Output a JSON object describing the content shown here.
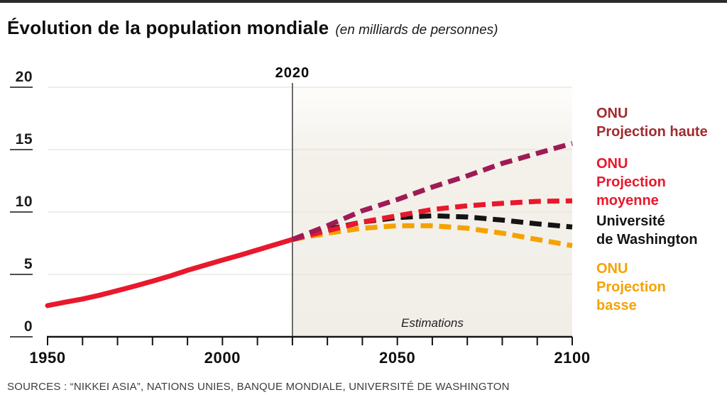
{
  "header": {
    "title": "Évolution de la population mondiale",
    "subtitle": "(en milliards de personnes)"
  },
  "footer": {
    "sources": "SOURCES : “NIKKEI ASIA”, NATIONS UNIES, BANQUE MONDIALE, UNIVERSITÉ DE WASHINGTON"
  },
  "chart_data": {
    "type": "line",
    "title": "Évolution de la population mondiale",
    "ylabel": "milliards de personnes",
    "x_axis": {
      "range": [
        1950,
        2100
      ],
      "minor_tick_step": 10,
      "labeled_ticks": [
        "1950",
        "2000",
        "2050",
        "2100"
      ]
    },
    "y_axis": {
      "range": [
        0,
        20
      ],
      "ticks": [
        "0",
        "5",
        "10",
        "15",
        "20"
      ]
    },
    "annotations": {
      "divider_year": 2020,
      "divider_label": "2020",
      "region_label": "Estimations",
      "region_range": [
        2020,
        2100
      ]
    },
    "series": [
      {
        "name": "population-observee",
        "style": "solid",
        "color": "#e9182c",
        "x": [
          1950,
          1955,
          1960,
          1965,
          1970,
          1975,
          1980,
          1985,
          1990,
          1995,
          2000,
          2005,
          2010,
          2015,
          2020
        ],
        "values": [
          2.5,
          2.77,
          3.03,
          3.34,
          3.7,
          4.07,
          4.46,
          4.87,
          5.33,
          5.74,
          6.15,
          6.54,
          6.96,
          7.38,
          7.8
        ]
      },
      {
        "name": "onu-projection-basse",
        "style": "dashed",
        "color": "#f5a201",
        "x": [
          2020,
          2030,
          2040,
          2050,
          2060,
          2070,
          2080,
          2090,
          2100
        ],
        "values": [
          7.8,
          8.3,
          8.7,
          8.9,
          8.9,
          8.7,
          8.3,
          7.8,
          7.3
        ]
      },
      {
        "name": "universite-de-washington",
        "style": "dashed",
        "color": "#141414",
        "x": [
          2020,
          2030,
          2040,
          2050,
          2060,
          2070,
          2080,
          2090,
          2100
        ],
        "values": [
          7.8,
          8.6,
          9.2,
          9.55,
          9.7,
          9.6,
          9.35,
          9.05,
          8.8
        ]
      },
      {
        "name": "onu-projection-moyenne",
        "style": "dashed",
        "color": "#e9182c",
        "x": [
          2020,
          2030,
          2040,
          2050,
          2060,
          2070,
          2080,
          2090,
          2100
        ],
        "values": [
          7.8,
          8.5,
          9.2,
          9.7,
          10.2,
          10.5,
          10.7,
          10.85,
          10.9
        ]
      },
      {
        "name": "onu-projection-haute",
        "style": "dashed",
        "color": "#9e1b55",
        "x": [
          2020,
          2030,
          2040,
          2050,
          2060,
          2070,
          2080,
          2090,
          2100
        ],
        "values": [
          7.8,
          8.9,
          10.1,
          11.0,
          12.0,
          12.9,
          13.9,
          14.7,
          15.5
        ]
      }
    ]
  },
  "legend": {
    "items": [
      {
        "text": "ONU\nProjection haute",
        "color": "#a12b30"
      },
      {
        "text": "ONU\nProjection\nmoyenne",
        "color": "#e9182c"
      },
      {
        "text": "Université\nde Washington",
        "color": "#141414"
      },
      {
        "text": "ONU\nProjection\nbasse",
        "color": "#f5a201"
      }
    ]
  }
}
